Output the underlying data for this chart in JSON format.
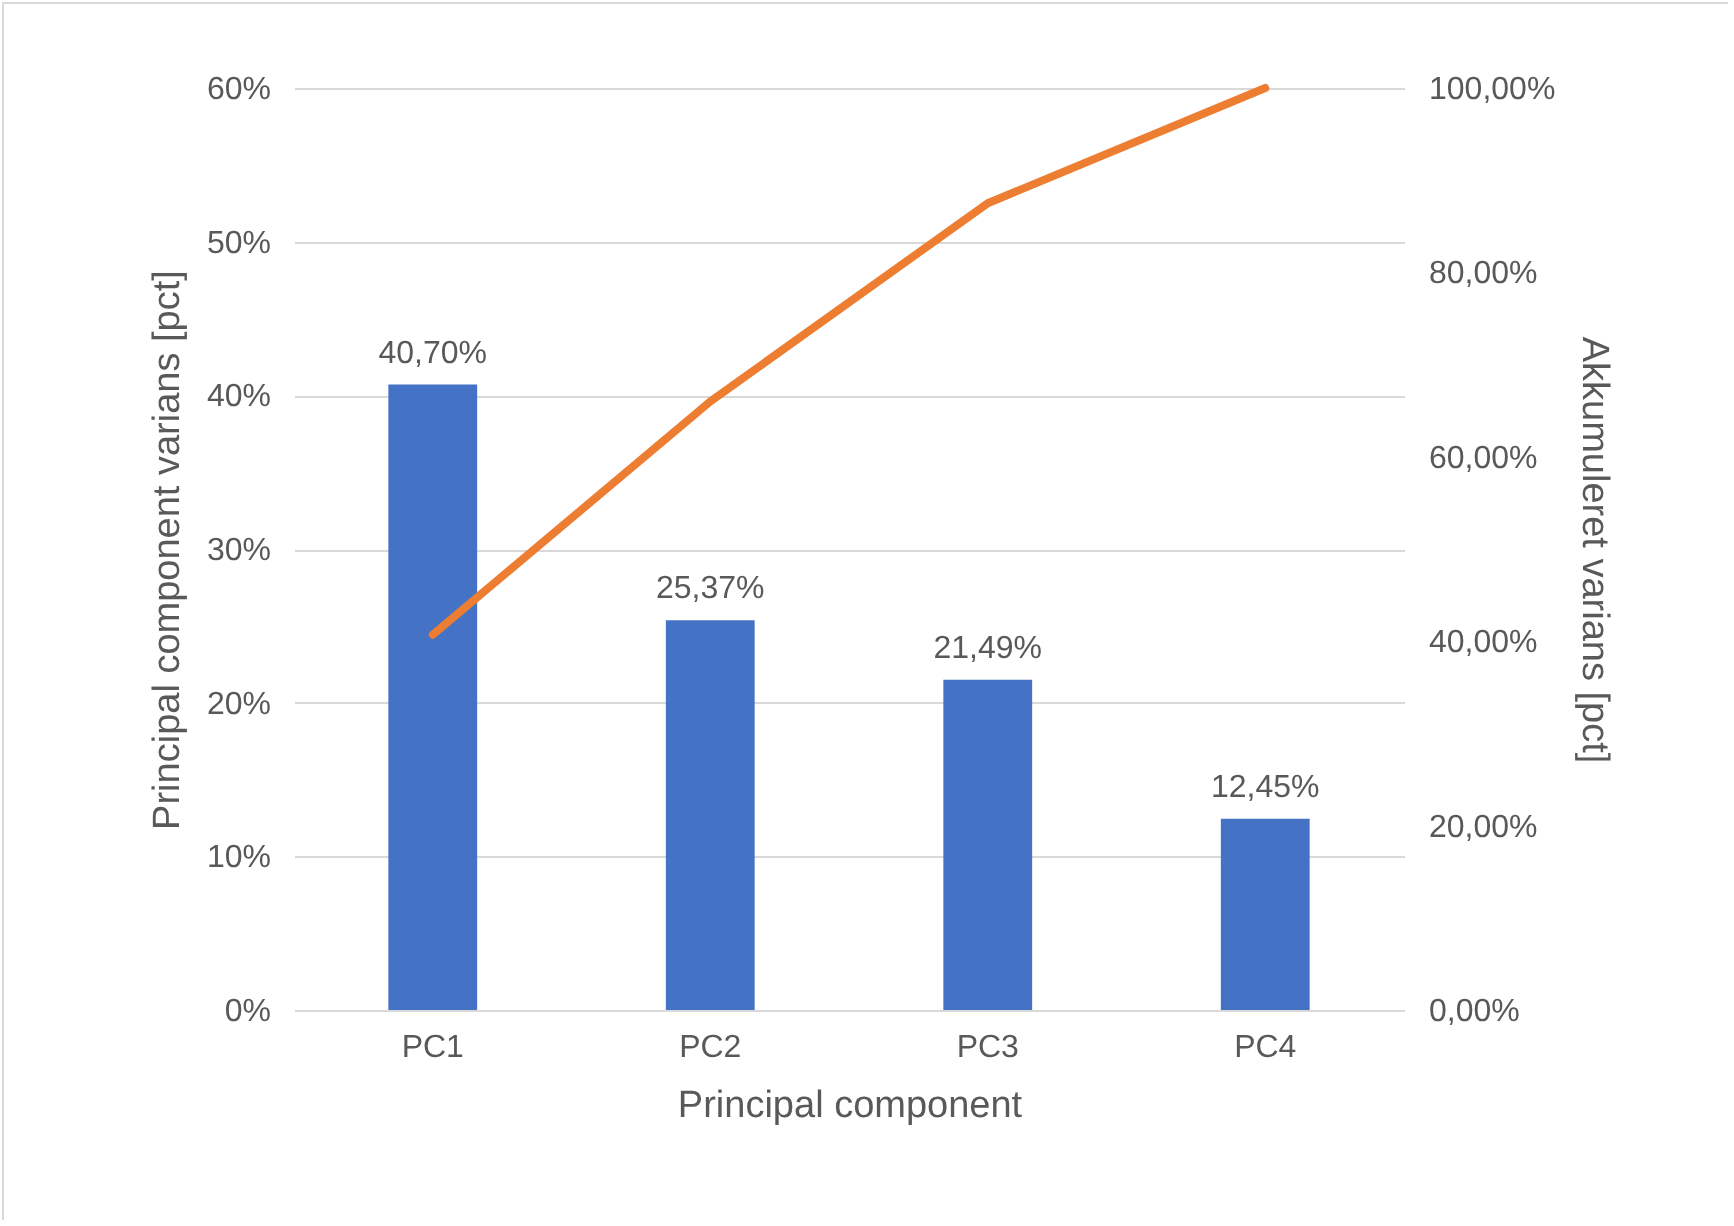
{
  "chart_data": {
    "type": "bar",
    "categories": [
      "PC1",
      "PC2",
      "PC3",
      "PC4"
    ],
    "series": [
      {
        "color": "#4472c4",
        "values": [
          40.7,
          25.37,
          21.49,
          12.45
        ],
        "value_labels": [
          "40,70%",
          "25,37%",
          "21,49%",
          "12,45%"
        ]
      },
      {
        "type": "line",
        "axis": "y2",
        "color": "#ed7d31",
        "values": [
          40.7,
          66,
          87.5,
          100
        ]
      }
    ],
    "ylim": [
      0,
      60
    ],
    "yticks": [
      {
        "value": 0,
        "label": "0%"
      },
      {
        "value": 10,
        "label": "10%"
      },
      {
        "value": 20,
        "label": "20%"
      },
      {
        "value": 30,
        "label": "30%"
      },
      {
        "value": 40,
        "label": "40%"
      },
      {
        "value": 50,
        "label": "50%"
      },
      {
        "value": 60,
        "label": "60%"
      }
    ],
    "y2lim": [
      0,
      100
    ],
    "y2ticks": [
      {
        "value": 0,
        "label": "0,00%"
      },
      {
        "value": 20,
        "label": "20,00%"
      },
      {
        "value": 40,
        "label": "40,00%"
      },
      {
        "value": 60,
        "label": "60,00%"
      },
      {
        "value": 80,
        "label": "80,00%"
      },
      {
        "value": 100,
        "label": "100,00%"
      }
    ],
    "xlabel": "Principal component",
    "ylabel": "Principal component varians [pct]",
    "y2label": "Akkumuleret varians [pct]",
    "grid": "y"
  }
}
